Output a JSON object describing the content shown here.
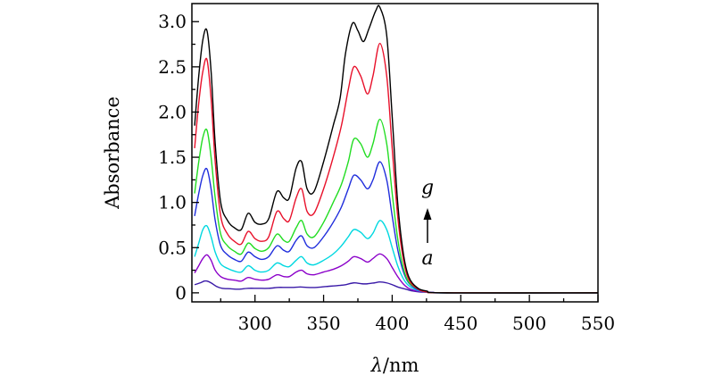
{
  "chart_data": {
    "type": "line",
    "xlabel": "λ/nm",
    "ylabel": "Absorbance",
    "xlim": [
      254,
      550
    ],
    "ylim": [
      -0.1,
      3.2
    ],
    "x_ticks": [
      300,
      350,
      400,
      450,
      500,
      550
    ],
    "y_ticks": [
      0,
      0.5,
      1.0,
      1.5,
      2.0,
      2.5,
      3.0
    ],
    "y_tick_labels": [
      "0",
      "0.5",
      "1.0",
      "1.5",
      "2.0",
      "2.5",
      "3.0"
    ],
    "grid": false,
    "annotations": {
      "top": "g",
      "bottom": "a"
    },
    "series": [
      {
        "color": "#3a1aa8",
        "values": [
          [
            256,
            0.09
          ],
          [
            260,
            0.11
          ],
          [
            263,
            0.13
          ],
          [
            265,
            0.13
          ],
          [
            268,
            0.11
          ],
          [
            272,
            0.07
          ],
          [
            276,
            0.05
          ],
          [
            282,
            0.045
          ],
          [
            288,
            0.04
          ],
          [
            295,
            0.05
          ],
          [
            302,
            0.05
          ],
          [
            310,
            0.05
          ],
          [
            317,
            0.06
          ],
          [
            322,
            0.06
          ],
          [
            328,
            0.06
          ],
          [
            333,
            0.065
          ],
          [
            338,
            0.06
          ],
          [
            345,
            0.06
          ],
          [
            352,
            0.07
          ],
          [
            360,
            0.08
          ],
          [
            366,
            0.09
          ],
          [
            372,
            0.11
          ],
          [
            378,
            0.1
          ],
          [
            382,
            0.1
          ],
          [
            387,
            0.11
          ],
          [
            391,
            0.12
          ],
          [
            396,
            0.11
          ],
          [
            400,
            0.09
          ],
          [
            405,
            0.06
          ],
          [
            410,
            0.04
          ],
          [
            415,
            0.02
          ],
          [
            420,
            0.01
          ],
          [
            430,
            0.005
          ],
          [
            440,
            0.0
          ],
          [
            550,
            0.0
          ]
        ]
      },
      {
        "color": "#8b00c9",
        "values": [
          [
            256,
            0.22
          ],
          [
            259,
            0.3
          ],
          [
            262,
            0.38
          ],
          [
            265,
            0.42
          ],
          [
            268,
            0.36
          ],
          [
            271,
            0.25
          ],
          [
            275,
            0.18
          ],
          [
            280,
            0.15
          ],
          [
            285,
            0.14
          ],
          [
            290,
            0.13
          ],
          [
            295,
            0.17
          ],
          [
            300,
            0.15
          ],
          [
            305,
            0.14
          ],
          [
            310,
            0.15
          ],
          [
            316,
            0.2
          ],
          [
            321,
            0.18
          ],
          [
            325,
            0.18
          ],
          [
            330,
            0.23
          ],
          [
            334,
            0.25
          ],
          [
            338,
            0.21
          ],
          [
            343,
            0.2
          ],
          [
            350,
            0.23
          ],
          [
            357,
            0.26
          ],
          [
            363,
            0.3
          ],
          [
            368,
            0.35
          ],
          [
            372,
            0.4
          ],
          [
            377,
            0.38
          ],
          [
            382,
            0.34
          ],
          [
            386,
            0.38
          ],
          [
            391,
            0.43
          ],
          [
            396,
            0.38
          ],
          [
            400,
            0.28
          ],
          [
            404,
            0.18
          ],
          [
            408,
            0.1
          ],
          [
            412,
            0.05
          ],
          [
            418,
            0.02
          ],
          [
            425,
            0.01
          ],
          [
            440,
            0.0
          ],
          [
            550,
            0.0
          ]
        ]
      },
      {
        "color": "#00d8e0",
        "values": [
          [
            256,
            0.4
          ],
          [
            259,
            0.55
          ],
          [
            262,
            0.7
          ],
          [
            265,
            0.74
          ],
          [
            268,
            0.62
          ],
          [
            271,
            0.45
          ],
          [
            275,
            0.32
          ],
          [
            280,
            0.27
          ],
          [
            285,
            0.24
          ],
          [
            290,
            0.23
          ],
          [
            295,
            0.3
          ],
          [
            300,
            0.25
          ],
          [
            305,
            0.23
          ],
          [
            310,
            0.25
          ],
          [
            316,
            0.33
          ],
          [
            321,
            0.3
          ],
          [
            325,
            0.29
          ],
          [
            330,
            0.36
          ],
          [
            334,
            0.4
          ],
          [
            338,
            0.33
          ],
          [
            343,
            0.31
          ],
          [
            350,
            0.36
          ],
          [
            357,
            0.43
          ],
          [
            363,
            0.52
          ],
          [
            368,
            0.62
          ],
          [
            372,
            0.7
          ],
          [
            377,
            0.67
          ],
          [
            382,
            0.6
          ],
          [
            386,
            0.66
          ],
          [
            391,
            0.8
          ],
          [
            396,
            0.7
          ],
          [
            400,
            0.5
          ],
          [
            404,
            0.3
          ],
          [
            408,
            0.16
          ],
          [
            412,
            0.08
          ],
          [
            418,
            0.03
          ],
          [
            425,
            0.01
          ],
          [
            440,
            0.0
          ],
          [
            550,
            0.0
          ]
        ]
      },
      {
        "color": "#1f2ddc",
        "values": [
          [
            256,
            0.85
          ],
          [
            259,
            1.1
          ],
          [
            262,
            1.3
          ],
          [
            265,
            1.37
          ],
          [
            268,
            1.15
          ],
          [
            271,
            0.8
          ],
          [
            275,
            0.52
          ],
          [
            280,
            0.42
          ],
          [
            285,
            0.37
          ],
          [
            290,
            0.35
          ],
          [
            295,
            0.45
          ],
          [
            300,
            0.4
          ],
          [
            305,
            0.37
          ],
          [
            310,
            0.4
          ],
          [
            316,
            0.52
          ],
          [
            321,
            0.47
          ],
          [
            325,
            0.46
          ],
          [
            330,
            0.58
          ],
          [
            334,
            0.63
          ],
          [
            338,
            0.52
          ],
          [
            343,
            0.5
          ],
          [
            350,
            0.62
          ],
          [
            357,
            0.78
          ],
          [
            363,
            0.95
          ],
          [
            368,
            1.15
          ],
          [
            372,
            1.3
          ],
          [
            377,
            1.25
          ],
          [
            382,
            1.15
          ],
          [
            386,
            1.25
          ],
          [
            391,
            1.45
          ],
          [
            396,
            1.25
          ],
          [
            400,
            0.85
          ],
          [
            404,
            0.48
          ],
          [
            408,
            0.24
          ],
          [
            412,
            0.11
          ],
          [
            418,
            0.04
          ],
          [
            425,
            0.01
          ],
          [
            440,
            0.0
          ],
          [
            550,
            0.0
          ]
        ]
      },
      {
        "color": "#22dd22",
        "values": [
          [
            256,
            1.1
          ],
          [
            259,
            1.45
          ],
          [
            262,
            1.72
          ],
          [
            265,
            1.8
          ],
          [
            268,
            1.5
          ],
          [
            271,
            1.05
          ],
          [
            275,
            0.65
          ],
          [
            280,
            0.52
          ],
          [
            285,
            0.46
          ],
          [
            290,
            0.43
          ],
          [
            295,
            0.55
          ],
          [
            300,
            0.49
          ],
          [
            305,
            0.46
          ],
          [
            310,
            0.5
          ],
          [
            316,
            0.65
          ],
          [
            321,
            0.58
          ],
          [
            325,
            0.57
          ],
          [
            330,
            0.72
          ],
          [
            334,
            0.8
          ],
          [
            338,
            0.65
          ],
          [
            343,
            0.62
          ],
          [
            350,
            0.78
          ],
          [
            357,
            1.0
          ],
          [
            363,
            1.2
          ],
          [
            368,
            1.45
          ],
          [
            372,
            1.7
          ],
          [
            377,
            1.65
          ],
          [
            382,
            1.5
          ],
          [
            386,
            1.65
          ],
          [
            391,
            1.92
          ],
          [
            396,
            1.65
          ],
          [
            400,
            1.1
          ],
          [
            404,
            0.6
          ],
          [
            408,
            0.28
          ],
          [
            412,
            0.12
          ],
          [
            418,
            0.05
          ],
          [
            425,
            0.01
          ],
          [
            440,
            0.0
          ],
          [
            550,
            0.0
          ]
        ]
      },
      {
        "color": "#e8102a",
        "values": [
          [
            256,
            1.6
          ],
          [
            259,
            2.1
          ],
          [
            262,
            2.45
          ],
          [
            265,
            2.58
          ],
          [
            268,
            2.15
          ],
          [
            271,
            1.45
          ],
          [
            275,
            0.85
          ],
          [
            280,
            0.65
          ],
          [
            285,
            0.57
          ],
          [
            290,
            0.54
          ],
          [
            295,
            0.68
          ],
          [
            300,
            0.6
          ],
          [
            305,
            0.57
          ],
          [
            310,
            0.62
          ],
          [
            316,
            0.9
          ],
          [
            321,
            0.82
          ],
          [
            325,
            0.8
          ],
          [
            330,
            1.05
          ],
          [
            334,
            1.15
          ],
          [
            338,
            0.9
          ],
          [
            343,
            0.88
          ],
          [
            350,
            1.15
          ],
          [
            357,
            1.5
          ],
          [
            363,
            1.85
          ],
          [
            368,
            2.25
          ],
          [
            372,
            2.5
          ],
          [
            377,
            2.4
          ],
          [
            382,
            2.2
          ],
          [
            386,
            2.4
          ],
          [
            391,
            2.76
          ],
          [
            396,
            2.4
          ],
          [
            400,
            1.6
          ],
          [
            404,
            0.85
          ],
          [
            408,
            0.38
          ],
          [
            412,
            0.15
          ],
          [
            418,
            0.05
          ],
          [
            425,
            0.01
          ],
          [
            440,
            0.0
          ],
          [
            550,
            0.0
          ]
        ]
      },
      {
        "color": "#000000",
        "values": [
          [
            256,
            1.85
          ],
          [
            259,
            2.4
          ],
          [
            262,
            2.8
          ],
          [
            265,
            2.9
          ],
          [
            268,
            2.45
          ],
          [
            271,
            1.65
          ],
          [
            275,
            1.0
          ],
          [
            280,
            0.8
          ],
          [
            285,
            0.72
          ],
          [
            290,
            0.7
          ],
          [
            295,
            0.88
          ],
          [
            300,
            0.78
          ],
          [
            305,
            0.76
          ],
          [
            310,
            0.82
          ],
          [
            316,
            1.12
          ],
          [
            321,
            1.05
          ],
          [
            325,
            1.05
          ],
          [
            330,
            1.38
          ],
          [
            334,
            1.45
          ],
          [
            338,
            1.15
          ],
          [
            343,
            1.12
          ],
          [
            350,
            1.45
          ],
          [
            357,
            1.85
          ],
          [
            362,
            2.15
          ],
          [
            366,
            2.65
          ],
          [
            371,
            2.98
          ],
          [
            375,
            2.9
          ],
          [
            379,
            2.78
          ],
          [
            383,
            2.92
          ],
          [
            388,
            3.12
          ],
          [
            391,
            3.16
          ],
          [
            396,
            2.85
          ],
          [
            400,
            1.95
          ],
          [
            404,
            1.0
          ],
          [
            408,
            0.45
          ],
          [
            412,
            0.18
          ],
          [
            418,
            0.06
          ],
          [
            425,
            0.02
          ],
          [
            440,
            0.0
          ],
          [
            550,
            0.0
          ]
        ]
      }
    ]
  }
}
